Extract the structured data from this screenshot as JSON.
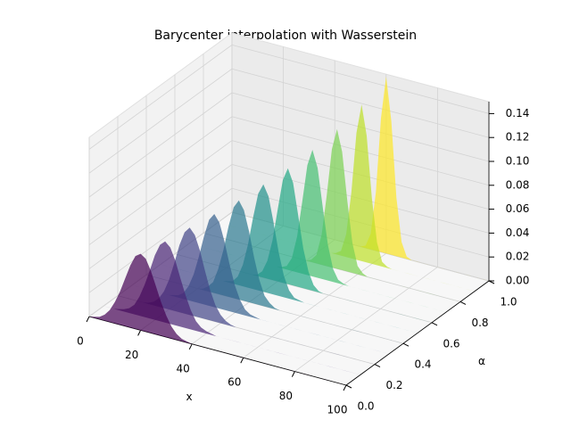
{
  "chart_data": {
    "type": "poly3d",
    "title": "Barycenter interpolation with Wasserstein",
    "xlabel": "x",
    "ylabel": "α",
    "x": [
      0,
      2,
      4,
      6,
      8,
      10,
      12,
      14,
      16,
      18,
      20,
      22,
      24,
      26,
      28,
      30,
      32,
      34,
      36,
      38,
      40,
      42,
      44,
      46,
      48,
      50,
      52,
      54,
      56,
      58,
      60,
      62,
      64,
      66,
      68,
      70,
      72,
      74,
      76,
      78,
      80,
      82,
      84,
      86,
      88,
      90,
      92,
      94,
      96,
      98,
      100
    ],
    "xlim": [
      0,
      100
    ],
    "xticks": [
      0,
      20,
      40,
      60,
      80,
      100
    ],
    "ylim": [
      0,
      1
    ],
    "yticks": [
      {
        "value": 0,
        "label": "0.0"
      },
      0.2,
      0.4,
      0.6,
      0.8,
      {
        "value": 1,
        "label": "1.0"
      }
    ],
    "zlim": [
      0,
      0.15
    ],
    "zticks": [
      {
        "value": 0,
        "label": "0.00"
      },
      {
        "value": 0.02,
        "label": "0.02"
      },
      {
        "value": 0.04,
        "label": "0.04"
      },
      {
        "value": 0.06,
        "label": "0.06"
      },
      {
        "value": 0.08,
        "label": "0.08"
      },
      {
        "value": 0.1,
        "label": "0.10"
      },
      {
        "value": 0.12,
        "label": "0.12"
      },
      {
        "value": 0.14,
        "label": "0.14"
      }
    ],
    "grid": true,
    "opacity": 0.7,
    "series": [
      {
        "y": 0,
        "color": "#440154",
        "values": [
          0,
          0.001,
          0.002,
          0.005,
          0.01,
          0.018,
          0.028,
          0.04,
          0.052,
          0.061,
          0.064,
          0.061,
          0.052,
          0.04,
          0.028,
          0.018,
          0.01,
          0.005,
          0.002,
          0.001,
          0,
          0,
          0,
          0,
          0,
          0,
          0,
          0,
          0,
          0,
          0,
          0,
          0,
          0,
          0,
          0,
          0,
          0,
          0,
          0,
          0,
          0,
          0,
          0,
          0,
          0,
          0,
          0,
          0,
          0,
          0
        ]
      },
      {
        "y": 0.1,
        "color": "#482475",
        "values": [
          0,
          0,
          0,
          0.001,
          0.002,
          0.004,
          0.008,
          0.016,
          0.027,
          0.04,
          0.054,
          0.064,
          0.068,
          0.064,
          0.054,
          0.04,
          0.027,
          0.016,
          0.008,
          0.004,
          0.002,
          0.001,
          0,
          0,
          0,
          0,
          0,
          0,
          0,
          0,
          0,
          0,
          0,
          0,
          0,
          0,
          0,
          0,
          0,
          0,
          0,
          0,
          0,
          0,
          0,
          0,
          0,
          0,
          0,
          0,
          0
        ]
      },
      {
        "y": 0.2,
        "color": "#414487",
        "values": [
          0,
          0,
          0,
          0,
          0,
          0,
          0.001,
          0.003,
          0.007,
          0.014,
          0.025,
          0.04,
          0.056,
          0.068,
          0.073,
          0.068,
          0.056,
          0.04,
          0.025,
          0.014,
          0.007,
          0.003,
          0.001,
          0,
          0,
          0,
          0,
          0,
          0,
          0,
          0,
          0,
          0,
          0,
          0,
          0,
          0,
          0,
          0,
          0,
          0,
          0,
          0,
          0,
          0,
          0,
          0,
          0,
          0,
          0,
          0
        ]
      },
      {
        "y": 0.3,
        "color": "#355f8d",
        "values": [
          0,
          0,
          0,
          0,
          0,
          0,
          0,
          0,
          0.001,
          0.002,
          0.005,
          0.012,
          0.023,
          0.039,
          0.057,
          0.072,
          0.078,
          0.072,
          0.057,
          0.039,
          0.023,
          0.012,
          0.005,
          0.002,
          0.001,
          0,
          0,
          0,
          0,
          0,
          0,
          0,
          0,
          0,
          0,
          0,
          0,
          0,
          0,
          0,
          0,
          0,
          0,
          0,
          0,
          0,
          0,
          0,
          0,
          0,
          0
        ]
      },
      {
        "y": 0.4,
        "color": "#2a788e",
        "values": [
          0,
          0,
          0,
          0,
          0,
          0,
          0,
          0,
          0,
          0,
          0,
          0.001,
          0.004,
          0.009,
          0.021,
          0.038,
          0.059,
          0.076,
          0.083,
          0.076,
          0.059,
          0.038,
          0.021,
          0.009,
          0.004,
          0.001,
          0,
          0,
          0,
          0,
          0,
          0,
          0,
          0,
          0,
          0,
          0,
          0,
          0,
          0,
          0,
          0,
          0,
          0,
          0,
          0,
          0,
          0,
          0,
          0,
          0
        ]
      },
      {
        "y": 0.5,
        "color": "#21918c",
        "values": [
          0,
          0,
          0,
          0,
          0,
          0,
          0,
          0,
          0,
          0,
          0,
          0,
          0,
          0.001,
          0.002,
          0.007,
          0.018,
          0.036,
          0.06,
          0.081,
          0.09,
          0.081,
          0.06,
          0.036,
          0.018,
          0.007,
          0.002,
          0.001,
          0,
          0,
          0,
          0,
          0,
          0,
          0,
          0,
          0,
          0,
          0,
          0,
          0,
          0,
          0,
          0,
          0,
          0,
          0,
          0,
          0,
          0,
          0
        ]
      },
      {
        "y": 0.6,
        "color": "#22a884",
        "values": [
          0,
          0,
          0,
          0,
          0,
          0,
          0,
          0,
          0,
          0,
          0,
          0,
          0,
          0,
          0,
          0,
          0.001,
          0.005,
          0.015,
          0.033,
          0.06,
          0.086,
          0.097,
          0.086,
          0.06,
          0.033,
          0.015,
          0.005,
          0.001,
          0,
          0,
          0,
          0,
          0,
          0,
          0,
          0,
          0,
          0,
          0,
          0,
          0,
          0,
          0,
          0,
          0,
          0,
          0,
          0,
          0,
          0
        ]
      },
      {
        "y": 0.7,
        "color": "#44bf70",
        "values": [
          0,
          0,
          0,
          0,
          0,
          0,
          0,
          0,
          0,
          0,
          0,
          0,
          0,
          0,
          0,
          0,
          0,
          0,
          0.001,
          0.003,
          0.011,
          0.03,
          0.06,
          0.092,
          0.106,
          0.092,
          0.06,
          0.03,
          0.011,
          0.003,
          0.001,
          0,
          0,
          0,
          0,
          0,
          0,
          0,
          0,
          0,
          0,
          0,
          0,
          0,
          0,
          0,
          0,
          0,
          0,
          0,
          0
        ]
      },
      {
        "y": 0.8,
        "color": "#7ad151",
        "values": [
          0,
          0,
          0,
          0,
          0,
          0,
          0,
          0,
          0,
          0,
          0,
          0,
          0,
          0,
          0,
          0,
          0,
          0,
          0,
          0,
          0,
          0.002,
          0.007,
          0.025,
          0.059,
          0.099,
          0.117,
          0.099,
          0.059,
          0.025,
          0.007,
          0.002,
          0,
          0,
          0,
          0,
          0,
          0,
          0,
          0,
          0,
          0,
          0,
          0,
          0,
          0,
          0,
          0,
          0,
          0,
          0
        ]
      },
      {
        "y": 0.9,
        "color": "#bddf26",
        "values": [
          0,
          0,
          0,
          0,
          0,
          0,
          0,
          0,
          0,
          0,
          0,
          0,
          0,
          0,
          0,
          0,
          0,
          0,
          0,
          0,
          0,
          0,
          0,
          0.001,
          0.004,
          0.019,
          0.055,
          0.106,
          0.131,
          0.106,
          0.055,
          0.019,
          0.004,
          0.001,
          0,
          0,
          0,
          0,
          0,
          0,
          0,
          0,
          0,
          0,
          0,
          0,
          0,
          0,
          0,
          0,
          0
        ]
      },
      {
        "y": 1,
        "color": "#fde725",
        "values": [
          0,
          0,
          0,
          0,
          0,
          0,
          0,
          0,
          0,
          0,
          0,
          0,
          0,
          0,
          0,
          0,
          0,
          0,
          0,
          0,
          0,
          0,
          0,
          0,
          0,
          0,
          0.002,
          0.013,
          0.049,
          0.112,
          0.148,
          0.112,
          0.049,
          0.013,
          0.002,
          0,
          0,
          0,
          0,
          0,
          0,
          0,
          0,
          0,
          0,
          0,
          0,
          0,
          0,
          0,
          0
        ]
      }
    ]
  }
}
